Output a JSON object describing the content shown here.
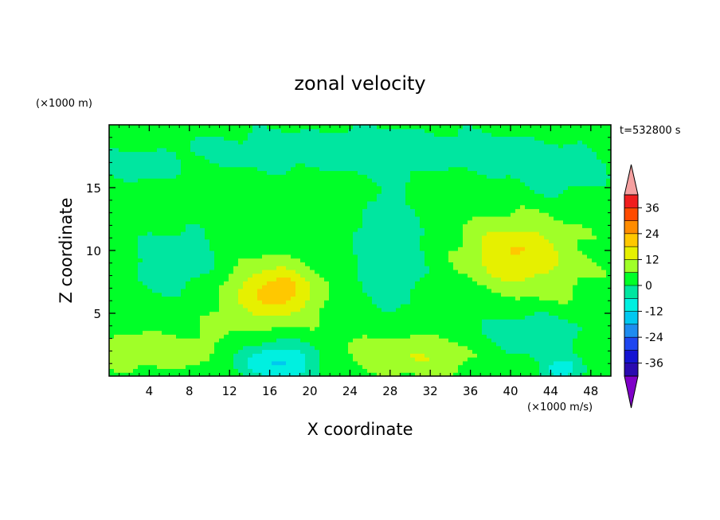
{
  "chart_data": {
    "type": "heatmap",
    "title": "zonal velocity",
    "xlabel": "X coordinate",
    "ylabel": "Z coordinate",
    "x_unit": "(×1000 m/s)",
    "y_unit": "(×1000 m)",
    "time_label": "t=532800 s",
    "xlim": [
      0,
      50
    ],
    "ylim": [
      0,
      20
    ],
    "x_ticks": [
      4,
      8,
      12,
      16,
      20,
      24,
      28,
      32,
      36,
      40,
      44,
      48
    ],
    "y_ticks": [
      5,
      10,
      15
    ],
    "colorbar": {
      "labels": [
        "36",
        "24",
        "12",
        "0",
        "-12",
        "-24",
        "-36"
      ],
      "levels": [
        -42,
        -36,
        -30,
        -24,
        -18,
        -12,
        -6,
        0,
        6,
        12,
        18,
        24,
        30,
        36,
        42
      ],
      "colors": [
        "#7f00c8",
        "#2a0ab0",
        "#1414d2",
        "#1e46f0",
        "#1e8cf0",
        "#00c8f0",
        "#00f0e0",
        "#00e6a0",
        "#00ff28",
        "#a0ff28",
        "#e6f000",
        "#ffc800",
        "#ff8c00",
        "#ff4b00",
        "#f01e1e",
        "#f5a0a0"
      ]
    },
    "features": [
      {
        "x": 17,
        "z": 6.8,
        "sx": 3.0,
        "sz": 1.7,
        "amp": 12
      },
      {
        "x": 15,
        "z": 6.5,
        "sx": 6.0,
        "sz": 3.0,
        "amp": 8
      },
      {
        "x": 40,
        "z": 10,
        "sx": 4.5,
        "sz": 2.4,
        "amp": 12
      },
      {
        "x": 43,
        "z": 8,
        "sx": 5.5,
        "sz": 4.0,
        "amp": 5
      },
      {
        "x": 30,
        "z": 1.7,
        "sx": 7.0,
        "sz": 1.6,
        "amp": 9
      },
      {
        "x": 5,
        "z": 2.0,
        "sx": 6.0,
        "sz": 1.6,
        "amp": 6
      },
      {
        "x": 17,
        "z": 1.2,
        "sx": 4.0,
        "sz": 1.6,
        "amp": -17
      },
      {
        "x": 7,
        "z": 9.0,
        "sx": 5.0,
        "sz": 3.0,
        "amp": -8
      },
      {
        "x": 28,
        "z": 10,
        "sx": 3.5,
        "sz": 5.0,
        "amp": -9
      },
      {
        "x": 42,
        "z": 3.5,
        "sx": 6.0,
        "sz": 2.2,
        "amp": -9
      },
      {
        "x": 45,
        "z": 0.5,
        "sx": 2.0,
        "sz": 1.0,
        "amp": -12
      },
      {
        "x": 25,
        "z": 18,
        "sx": 22.0,
        "sz": 2.0,
        "amp": -7
      },
      {
        "x": 3,
        "z": 16.5,
        "sx": 3.0,
        "sz": 1.0,
        "amp": -8
      },
      {
        "x": 45,
        "z": 16,
        "sx": 5.0,
        "sz": 2.0,
        "amp": -6
      }
    ]
  }
}
